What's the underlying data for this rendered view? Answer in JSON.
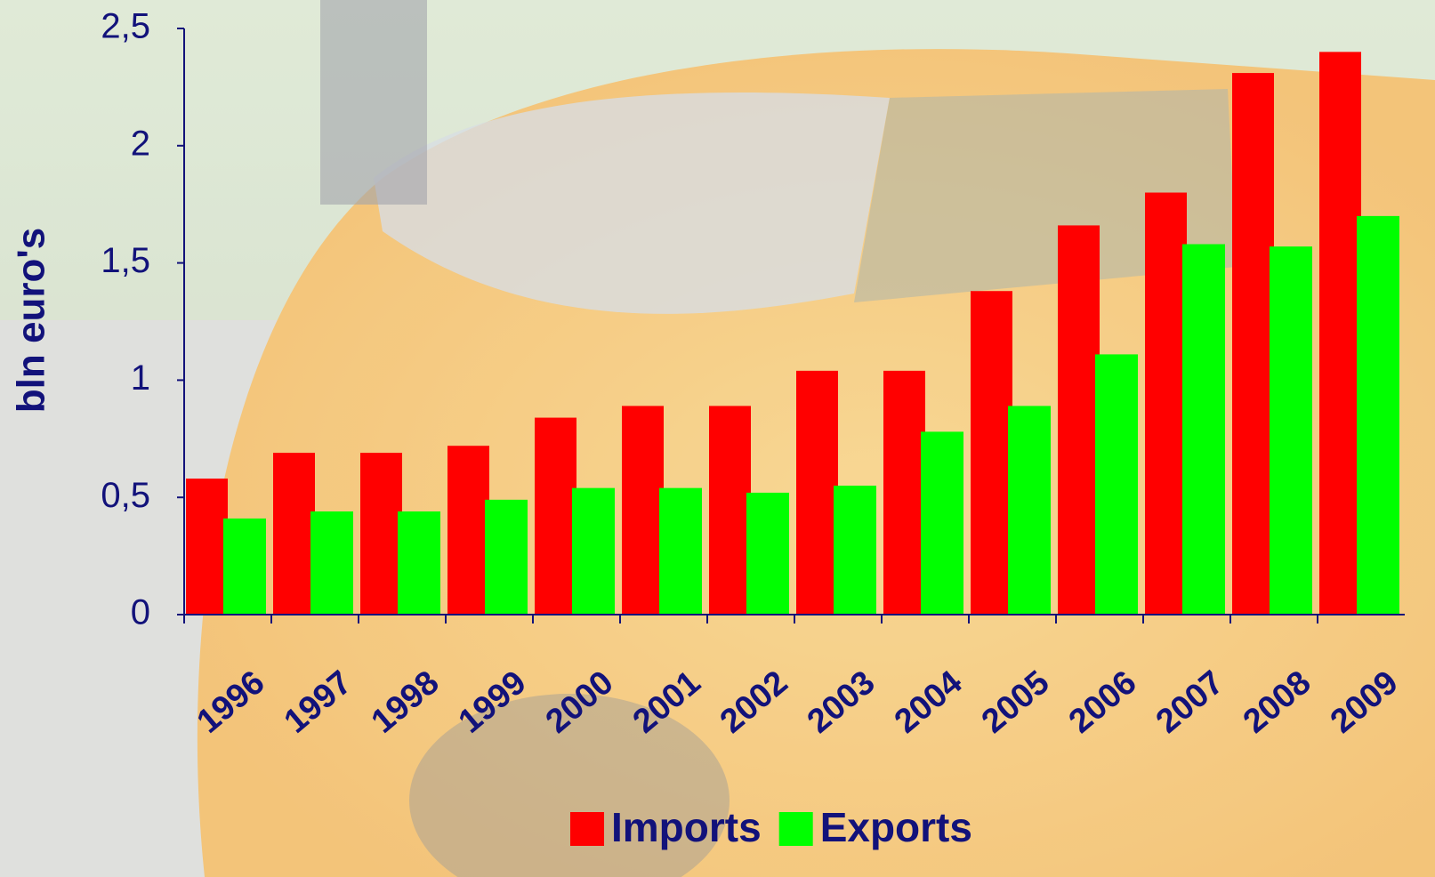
{
  "chart_data": {
    "type": "bar",
    "y_label": "bln euro's",
    "categories": [
      "1996",
      "1997",
      "1998",
      "1999",
      "2000",
      "2001",
      "2002",
      "2003",
      "2004",
      "2005",
      "2006",
      "2007",
      "2008",
      "2009"
    ],
    "series": [
      {
        "name": "Imports",
        "color": "#ff0000",
        "values": [
          0.58,
          0.69,
          0.69,
          0.72,
          0.84,
          0.89,
          0.89,
          1.04,
          1.04,
          1.38,
          1.66,
          1.8,
          2.31,
          2.4
        ]
      },
      {
        "name": "Exports",
        "color": "#00ff00",
        "values": [
          0.41,
          0.44,
          0.44,
          0.49,
          0.54,
          0.54,
          0.52,
          0.55,
          0.78,
          0.89,
          1.11,
          1.58,
          1.57,
          1.7
        ]
      }
    ],
    "ylim": [
      0,
      2.5
    ],
    "yticks": [
      0,
      {
        "value": 0.5,
        "label": "0,5"
      },
      1,
      {
        "value": 1.5,
        "label": "1,5"
      },
      2,
      {
        "value": 2.5,
        "label": "2,5"
      }
    ],
    "grid": false,
    "legend": "bottom"
  }
}
